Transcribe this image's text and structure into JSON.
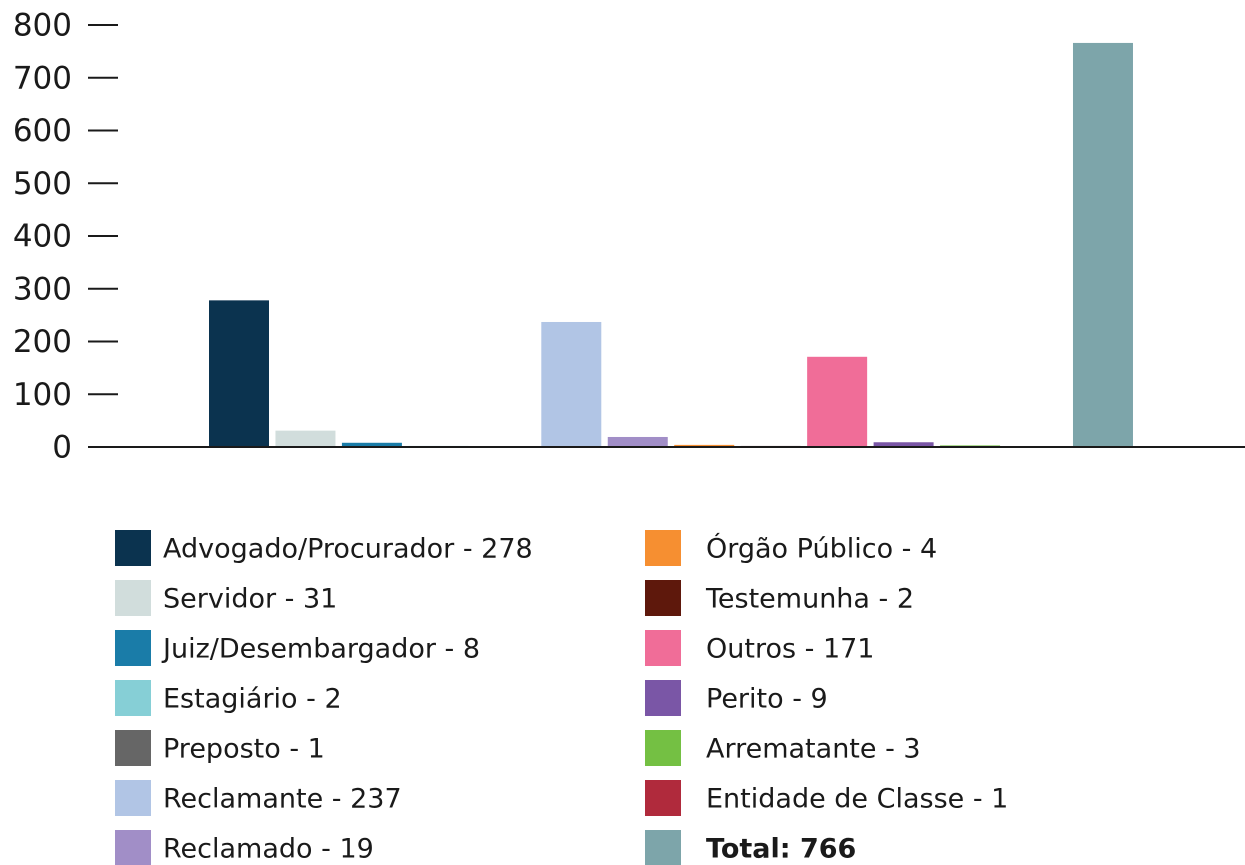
{
  "chart_data": {
    "type": "bar",
    "categories": [
      "Advogado/Procurador - 278",
      "Servidor - 31",
      "Juiz/Desembargador - 8",
      "Estagiário - 2",
      "Preposto - 1",
      "Reclamante - 237",
      "Reclamado - 19",
      "Órgão Público - 4",
      "Testemunha - 2",
      "Outros - 171",
      "Perito - 9",
      "Arrematante - 3",
      "Entidade de Classe - 1",
      "Total: 766"
    ],
    "values": [
      278,
      31,
      8,
      2,
      1,
      237,
      19,
      4,
      2,
      171,
      9,
      3,
      1,
      766
    ],
    "colors": [
      "#0b334f",
      "#d1dddc",
      "#1a7ca8",
      "#86cfd6",
      "#666666",
      "#b1c5e5",
      "#a18ec7",
      "#f68f31",
      "#5e180c",
      "#f06d98",
      "#7a56a6",
      "#74c043",
      "#b02a3c",
      "#7da5aa"
    ],
    "ylim": [
      0,
      800
    ],
    "yticks": [
      0,
      100,
      200,
      300,
      400,
      500,
      600,
      700,
      800
    ]
  }
}
